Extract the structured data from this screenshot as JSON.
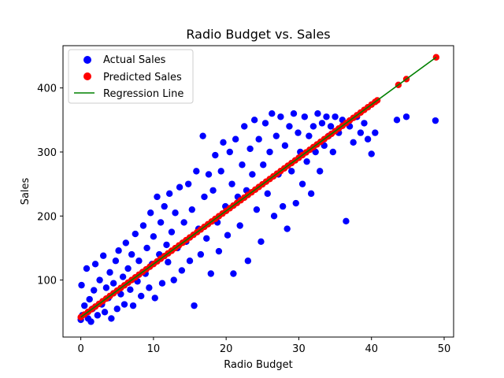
{
  "chart_data": {
    "type": "scatter",
    "title": "Radio Budget vs. Sales",
    "xlabel": "Radio Budget",
    "ylabel": "Sales",
    "xlim": [
      -2.45,
      51.3
    ],
    "ylim": [
      11,
      466
    ],
    "xticks": [
      0,
      10,
      20,
      30,
      40,
      50
    ],
    "yticks": [
      100,
      200,
      300,
      400
    ],
    "legend_position": "top-left",
    "grid": false,
    "regression": {
      "slope": 8.3,
      "intercept": 42,
      "x_range": [
        0,
        48.9
      ]
    },
    "colors": {
      "actual": "#0000ff",
      "predicted": "#ff0000",
      "regression": "#008000"
    },
    "series": [
      {
        "name": "Actual Sales",
        "kind": "scatter",
        "points": [
          [
            0.0,
            38
          ],
          [
            0.1,
            92
          ],
          [
            0.2,
            45
          ],
          [
            0.5,
            60
          ],
          [
            0.8,
            118
          ],
          [
            1.0,
            40
          ],
          [
            1.2,
            70
          ],
          [
            1.4,
            35
          ],
          [
            1.6,
            55
          ],
          [
            1.8,
            84
          ],
          [
            2.0,
            125
          ],
          [
            2.3,
            45
          ],
          [
            2.6,
            100
          ],
          [
            2.9,
            62
          ],
          [
            3.1,
            138
          ],
          [
            3.3,
            50
          ],
          [
            3.5,
            88
          ],
          [
            3.8,
            72
          ],
          [
            4.0,
            112
          ],
          [
            4.2,
            40
          ],
          [
            4.5,
            95
          ],
          [
            4.8,
            130
          ],
          [
            5.0,
            55
          ],
          [
            5.2,
            146
          ],
          [
            5.5,
            78
          ],
          [
            5.8,
            105
          ],
          [
            6.0,
            62
          ],
          [
            6.2,
            158
          ],
          [
            6.5,
            118
          ],
          [
            6.8,
            85
          ],
          [
            7.0,
            140
          ],
          [
            7.2,
            60
          ],
          [
            7.5,
            172
          ],
          [
            7.8,
            98
          ],
          [
            8.0,
            130
          ],
          [
            8.3,
            75
          ],
          [
            8.6,
            185
          ],
          [
            8.9,
            110
          ],
          [
            9.1,
            150
          ],
          [
            9.4,
            88
          ],
          [
            9.6,
            205
          ],
          [
            9.8,
            125
          ],
          [
            10.0,
            168
          ],
          [
            10.2,
            72
          ],
          [
            10.5,
            230
          ],
          [
            10.8,
            140
          ],
          [
            11.0,
            190
          ],
          [
            11.2,
            95
          ],
          [
            11.5,
            215
          ],
          [
            11.8,
            155
          ],
          [
            12.0,
            128
          ],
          [
            12.2,
            235
          ],
          [
            12.5,
            175
          ],
          [
            12.8,
            100
          ],
          [
            13.0,
            205
          ],
          [
            13.3,
            150
          ],
          [
            13.6,
            245
          ],
          [
            13.9,
            115
          ],
          [
            14.2,
            190
          ],
          [
            14.5,
            160
          ],
          [
            14.8,
            250
          ],
          [
            15.0,
            130
          ],
          [
            15.3,
            210
          ],
          [
            15.6,
            60
          ],
          [
            15.9,
            270
          ],
          [
            16.2,
            180
          ],
          [
            16.5,
            140
          ],
          [
            16.8,
            325
          ],
          [
            17.0,
            230
          ],
          [
            17.3,
            165
          ],
          [
            17.6,
            265
          ],
          [
            17.9,
            110
          ],
          [
            18.2,
            240
          ],
          [
            18.5,
            295
          ],
          [
            18.8,
            190
          ],
          [
            19.0,
            145
          ],
          [
            19.3,
            270
          ],
          [
            19.6,
            315
          ],
          [
            19.9,
            215
          ],
          [
            20.2,
            170
          ],
          [
            20.5,
            300
          ],
          [
            20.8,
            250
          ],
          [
            21.0,
            110
          ],
          [
            21.3,
            320
          ],
          [
            21.6,
            230
          ],
          [
            21.9,
            185
          ],
          [
            22.2,
            280
          ],
          [
            22.5,
            340
          ],
          [
            22.8,
            240
          ],
          [
            23.0,
            130
          ],
          [
            23.3,
            305
          ],
          [
            23.6,
            265
          ],
          [
            23.9,
            350
          ],
          [
            24.2,
            210
          ],
          [
            24.5,
            320
          ],
          [
            24.8,
            160
          ],
          [
            25.1,
            280
          ],
          [
            25.4,
            345
          ],
          [
            25.7,
            235
          ],
          [
            26.0,
            300
          ],
          [
            26.3,
            360
          ],
          [
            26.6,
            200
          ],
          [
            26.9,
            325
          ],
          [
            27.2,
            265
          ],
          [
            27.5,
            355
          ],
          [
            27.8,
            215
          ],
          [
            28.1,
            310
          ],
          [
            28.4,
            180
          ],
          [
            28.7,
            340
          ],
          [
            29.0,
            270
          ],
          [
            29.3,
            360
          ],
          [
            29.6,
            220
          ],
          [
            29.9,
            330
          ],
          [
            30.2,
            300
          ],
          [
            30.5,
            250
          ],
          [
            30.8,
            355
          ],
          [
            31.1,
            285
          ],
          [
            31.4,
            325
          ],
          [
            31.7,
            235
          ],
          [
            32.0,
            340
          ],
          [
            32.3,
            300
          ],
          [
            32.6,
            360
          ],
          [
            32.9,
            270
          ],
          [
            33.2,
            345
          ],
          [
            33.5,
            310
          ],
          [
            33.8,
            355
          ],
          [
            34.1,
            325
          ],
          [
            34.4,
            340
          ],
          [
            34.7,
            300
          ],
          [
            35.0,
            355
          ],
          [
            35.5,
            330
          ],
          [
            36.0,
            350
          ],
          [
            36.5,
            192
          ],
          [
            37.0,
            340
          ],
          [
            37.5,
            315
          ],
          [
            38.0,
            355
          ],
          [
            38.5,
            330
          ],
          [
            39.0,
            345
          ],
          [
            39.5,
            320
          ],
          [
            40.0,
            297
          ],
          [
            40.5,
            330
          ],
          [
            43.5,
            350
          ],
          [
            44.8,
            355
          ],
          [
            48.8,
            349
          ]
        ]
      },
      {
        "name": "Predicted Sales",
        "kind": "scatter",
        "x": [
          0.0,
          0.5,
          1.0,
          1.5,
          2.0,
          2.5,
          3.0,
          3.5,
          4.0,
          4.5,
          5.0,
          5.5,
          6.0,
          6.5,
          7.0,
          7.5,
          8.0,
          8.5,
          9.0,
          9.5,
          10.0,
          10.5,
          11.0,
          11.5,
          12.0,
          12.5,
          13.0,
          13.5,
          14.0,
          14.5,
          15.0,
          15.5,
          16.0,
          16.5,
          17.0,
          17.5,
          18.0,
          18.5,
          19.0,
          19.5,
          20.0,
          20.5,
          21.0,
          21.5,
          22.0,
          22.5,
          23.0,
          23.5,
          24.0,
          24.5,
          25.0,
          25.5,
          26.0,
          26.5,
          27.0,
          27.5,
          28.0,
          28.5,
          29.0,
          29.5,
          30.0,
          30.5,
          31.0,
          31.5,
          32.0,
          32.5,
          33.0,
          33.5,
          34.0,
          34.5,
          35.0,
          35.5,
          36.0,
          36.5,
          37.0,
          37.5,
          38.0,
          38.5,
          39.0,
          39.5,
          40.0,
          40.5,
          40.8,
          43.7,
          44.8,
          48.9
        ]
      },
      {
        "name": "Regression Line",
        "kind": "line"
      }
    ]
  }
}
